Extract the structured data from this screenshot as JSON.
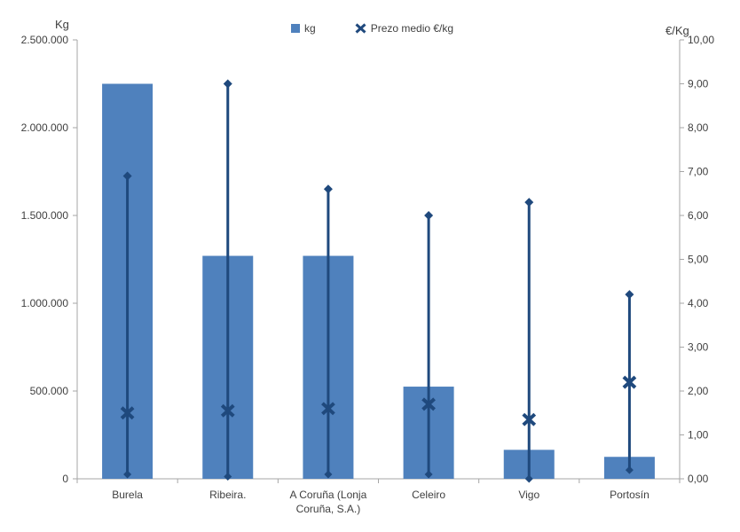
{
  "page": {
    "background": "#ffffff"
  },
  "axes": {
    "left": {
      "title": "Kg"
    },
    "right": {
      "title": "€/Kg"
    }
  },
  "legend": {
    "items": [
      {
        "label": "kg",
        "marker": "square",
        "color": "#4F81BD"
      },
      {
        "label": "Prezo medio €/kg",
        "marker": "x",
        "color": "#1F497D"
      }
    ]
  },
  "colors": {
    "bar": "#4F81BD",
    "marker": "#1F497D",
    "axis_line": "#A6A6A6",
    "text": "#404040"
  },
  "chart_data": {
    "type": "bar",
    "subtype": "combo: bars (kg, left axis) + price min-max range lines with diamond ends + X markers for average price (right axis)",
    "title": "",
    "grid": false,
    "legend_position": "top-center",
    "categories": [
      "Burela",
      "Ribeira.",
      "A Coruña (Lonja Coruña, S.A.)",
      "Celeiro",
      "Vigo",
      "Portosín"
    ],
    "series": [
      {
        "name": "kg",
        "type": "bar",
        "axis": "left",
        "color": "#4F81BD",
        "values": [
          2250000,
          1270000,
          1270000,
          525000,
          165000,
          125000
        ]
      },
      {
        "name": "Prezo medio €/kg",
        "type": "x-marker",
        "axis": "right",
        "color": "#1F497D",
        "values": [
          1.5,
          1.55,
          1.6,
          1.7,
          1.35,
          2.2
        ]
      },
      {
        "name": "price-range-high",
        "type": "range-line-end-diamond",
        "axis": "right",
        "color": "#1F497D",
        "values": [
          6.9,
          9.0,
          6.6,
          6.0,
          6.3,
          4.2
        ]
      },
      {
        "name": "price-range-low",
        "type": "range-line-end-diamond",
        "axis": "right",
        "color": "#1F497D",
        "values": [
          0.1,
          0.05,
          0.1,
          0.1,
          0.0,
          0.2
        ]
      }
    ],
    "left_axis": {
      "title": "Kg",
      "min": 0,
      "max": 2500000,
      "step": 500000,
      "tick_labels": [
        "0",
        "500.000",
        "1.000.000",
        "1.500.000",
        "2.000.000",
        "2.500.000"
      ]
    },
    "right_axis": {
      "title": "€/Kg",
      "min": 0,
      "max": 10,
      "step": 1,
      "tick_labels": [
        "0,00",
        "1,00",
        "2,00",
        "3,00",
        "4,00",
        "5,00",
        "6,00",
        "7,00",
        "8,00",
        "9,00",
        "10,00"
      ]
    }
  }
}
